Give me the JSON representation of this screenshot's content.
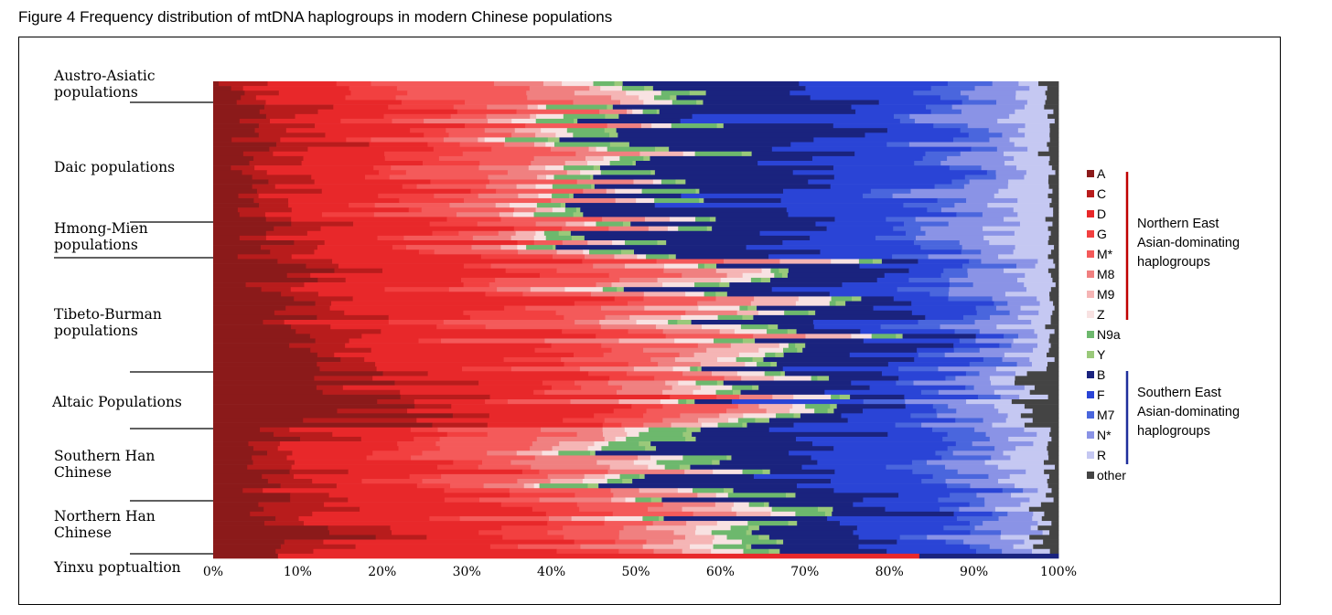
{
  "figure": {
    "title": "Figure 4 Frequency distribution of mtDNA haplogroups in modern Chinese populations"
  },
  "chart_data": {
    "type": "bar",
    "orientation": "horizontal",
    "stacked": "percent",
    "xlim": [
      0,
      100
    ],
    "x_ticks": [
      "0%",
      "10%",
      "20%",
      "30%",
      "40%",
      "50%",
      "60%",
      "70%",
      "80%",
      "90%",
      "100%"
    ],
    "groups": [
      {
        "label": "Austro-Asiatic populations",
        "rows": 5
      },
      {
        "label": "Daic populations",
        "rows": 25
      },
      {
        "label": "Hmong-Mien populations",
        "rows": 8
      },
      {
        "label": "Tibeto-Burman populations",
        "rows": 24
      },
      {
        "label": "Altaic Populations",
        "rows": 12
      },
      {
        "label": "Southern Han Chinese",
        "rows": 16
      },
      {
        "label": "Northern Han Chinese",
        "rows": 11
      },
      {
        "label": "Yinxu poptualtion",
        "rows": 1
      }
    ],
    "series": [
      {
        "name": "A",
        "color": "#8b1a1a"
      },
      {
        "name": "C",
        "color": "#b81c1c"
      },
      {
        "name": "D",
        "color": "#e8282a"
      },
      {
        "name": "G",
        "color": "#f24040"
      },
      {
        "name": "M*",
        "color": "#f45a5a"
      },
      {
        "name": "M8",
        "color": "#f08080"
      },
      {
        "name": "M9",
        "color": "#f5b5b5"
      },
      {
        "name": "Z",
        "color": "#f8e2e2"
      },
      {
        "name": "N9a",
        "color": "#6db86d"
      },
      {
        "name": "Y",
        "color": "#9ac97a"
      },
      {
        "name": "B",
        "color": "#1a237e"
      },
      {
        "name": "F",
        "color": "#2a44d6"
      },
      {
        "name": "M7",
        "color": "#4a66dd"
      },
      {
        "name": "N*",
        "color": "#8a93e6"
      },
      {
        "name": "R",
        "color": "#c5c8f2"
      },
      {
        "name": "other",
        "color": "#444444"
      }
    ],
    "group_profiles": [
      [
        2,
        4,
        12,
        7,
        12,
        6,
        3,
        3,
        2,
        1,
        18,
        16,
        4,
        5,
        3,
        2
      ],
      [
        4,
        5,
        12,
        5,
        8,
        5,
        2,
        2,
        4,
        1,
        22,
        15,
        3,
        7,
        4,
        1
      ],
      [
        6,
        5,
        14,
        5,
        7,
        4,
        2,
        1,
        3,
        1,
        21,
        15,
        4,
        6,
        5,
        1
      ],
      [
        9,
        6,
        21,
        6,
        9,
        5,
        4,
        3,
        2,
        1,
        11,
        9,
        4,
        5,
        4,
        1
      ],
      [
        18,
        8,
        18,
        4,
        6,
        4,
        3,
        3,
        2,
        1,
        9,
        9,
        3,
        6,
        3,
        3
      ],
      [
        6,
        5,
        14,
        5,
        9,
        6,
        3,
        2,
        4,
        1,
        18,
        13,
        4,
        5,
        4,
        1
      ],
      [
        10,
        6,
        21,
        6,
        8,
        5,
        4,
        3,
        3,
        1,
        12,
        10,
        3,
        5,
        2,
        2
      ],
      [
        11,
        0,
        60,
        0,
        0,
        0,
        0,
        0,
        0,
        0,
        29,
        0,
        0,
        0,
        0,
        0
      ]
    ],
    "group_divider_percent_x": 100,
    "legend": {
      "position": "right"
    },
    "annotations": [
      {
        "text": "Northern East Asian-dominating haplogroups",
        "lines": [
          "Northern East",
          "Asian-dominating",
          "haplogroups"
        ],
        "color": "#c00000",
        "range": [
          "A",
          "Z"
        ]
      },
      {
        "text": "Southern East Asian-dominating haplogroups",
        "lines": [
          "Southern East",
          "Asian-dominating",
          "haplogroups"
        ],
        "color": "#1f2f9c",
        "range": [
          "B",
          "R"
        ]
      }
    ]
  }
}
